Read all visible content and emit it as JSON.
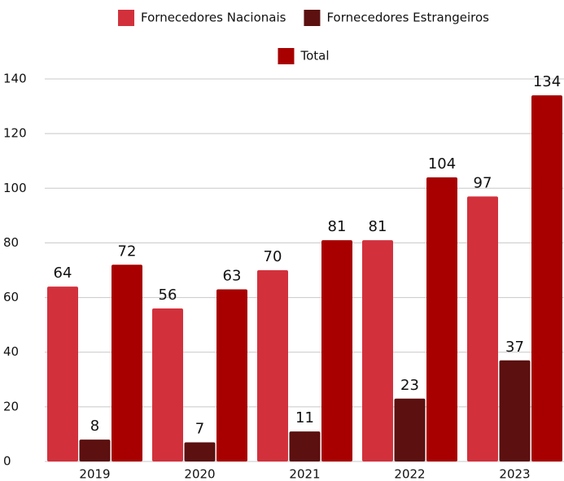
{
  "chart_data": {
    "type": "bar",
    "categories": [
      "2019",
      "2020",
      "2021",
      "2022",
      "2023"
    ],
    "series": [
      {
        "name": "Fornecedores Nacionais",
        "color": "#d2313c",
        "values": [
          64,
          56,
          70,
          81,
          97
        ]
      },
      {
        "name": "Fornecedores Estrangeiros",
        "color": "#5c1010",
        "values": [
          8,
          7,
          11,
          23,
          37
        ]
      },
      {
        "name": "Total",
        "color": "#a80000",
        "values": [
          72,
          63,
          81,
          104,
          134
        ]
      }
    ],
    "ylim": [
      0,
      140
    ],
    "yticks": [
      0,
      20,
      40,
      60,
      80,
      100,
      120,
      140
    ],
    "grid": true,
    "legend": "top"
  }
}
